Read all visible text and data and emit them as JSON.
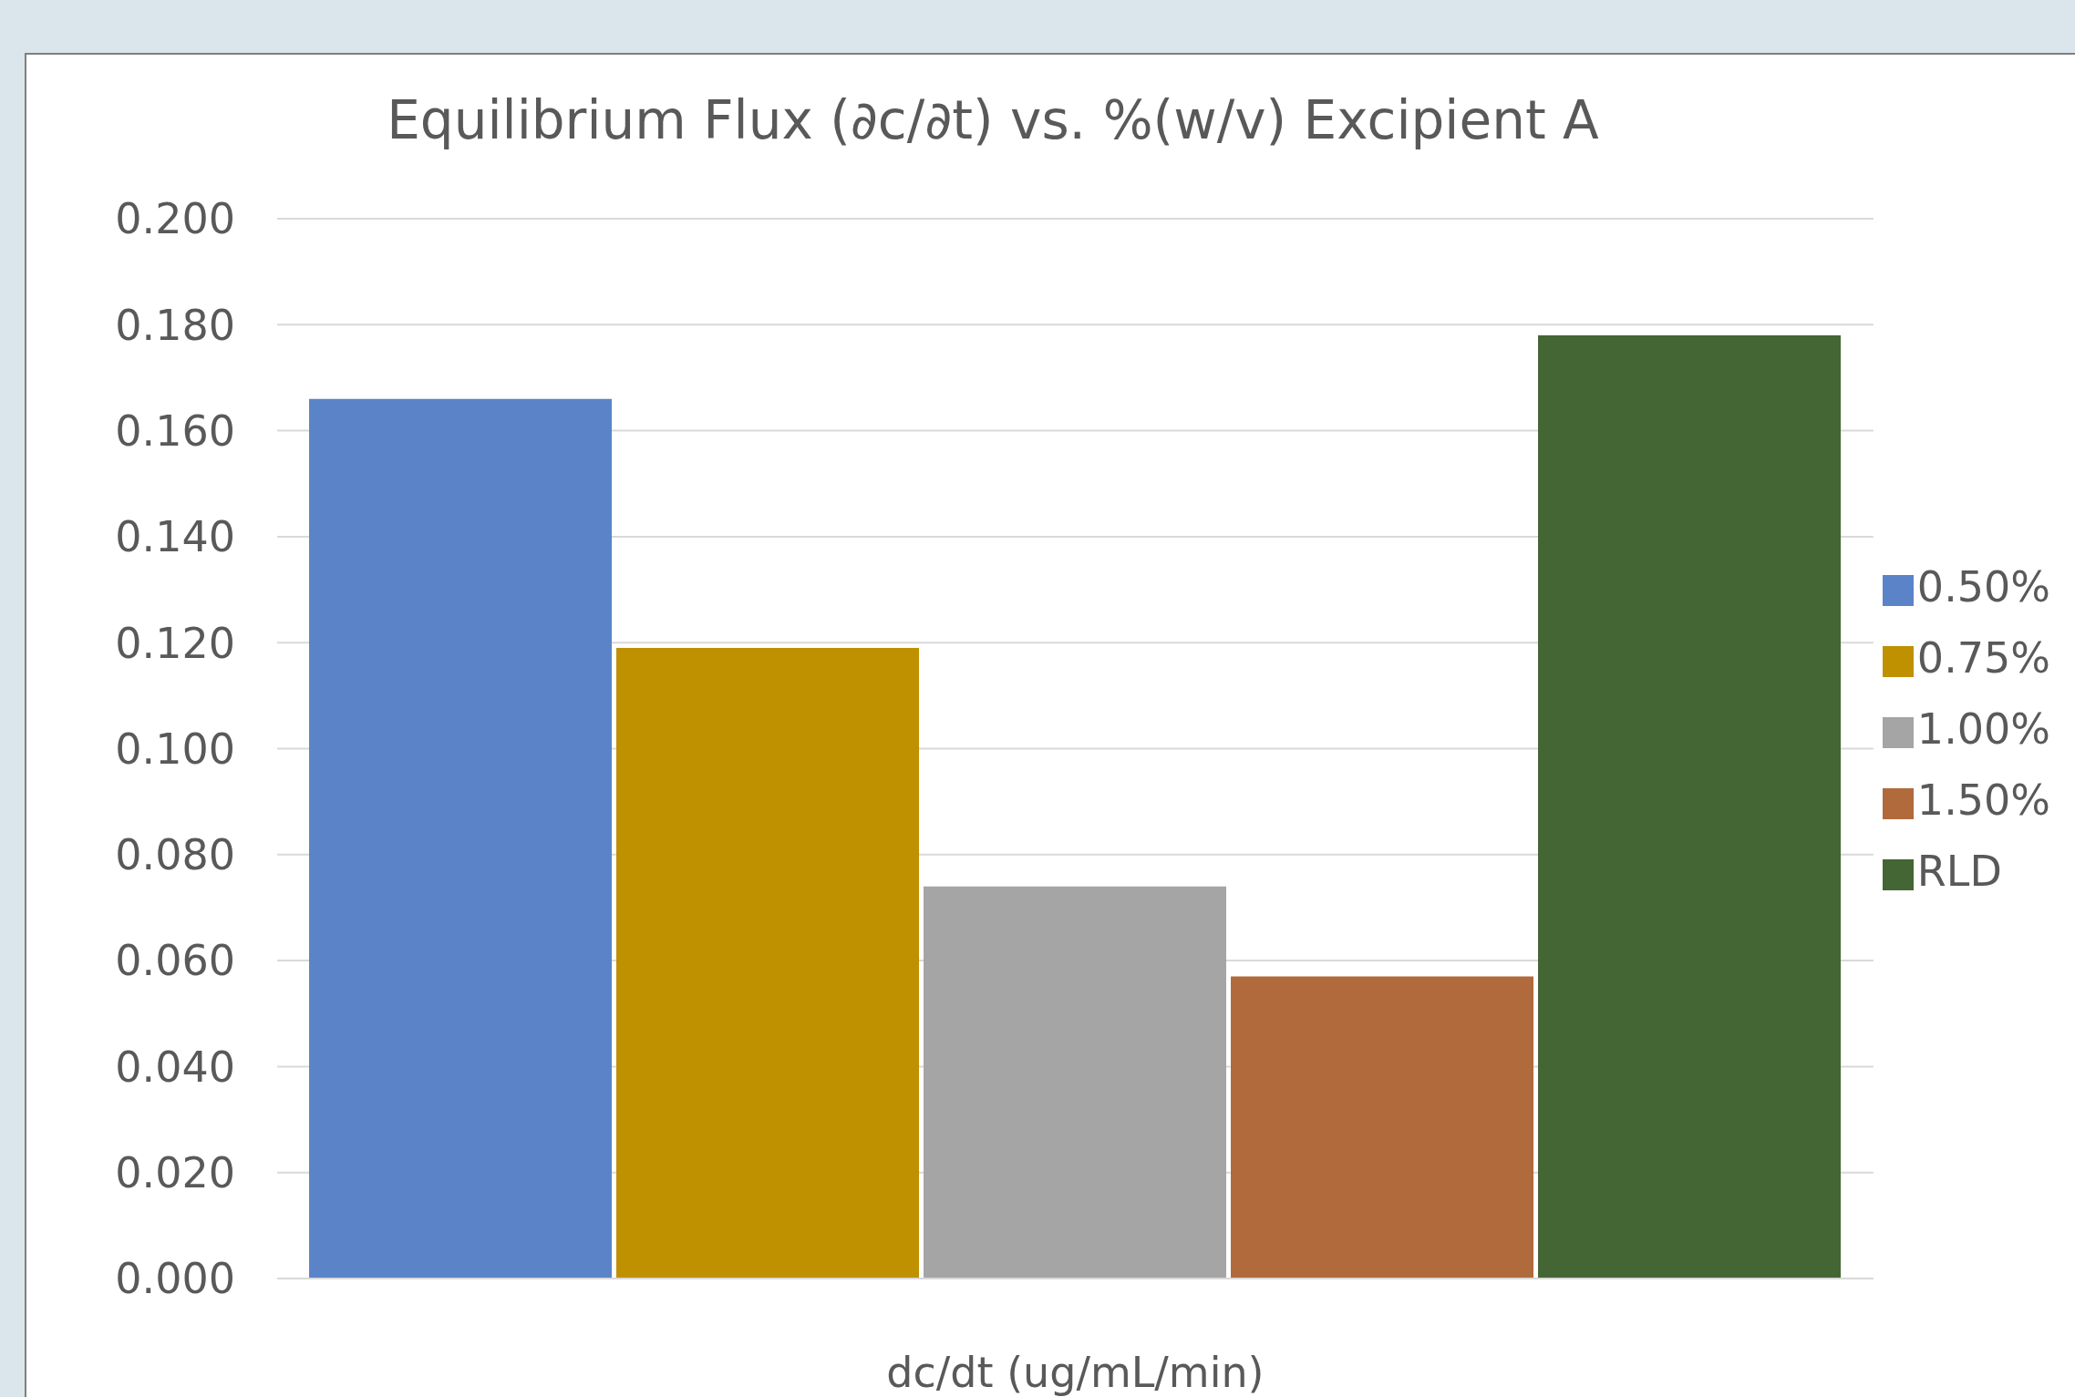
{
  "chart_data": {
    "type": "bar",
    "title": "Equilibrium Flux (∂c/∂t) vs. %(w/v) Excipient A",
    "xlabel": "dc/dt (ug/mL/min)",
    "categories": [
      null
    ],
    "series": [
      {
        "name": "0.50%",
        "color": "#5b84c8",
        "values": [
          0.166
        ]
      },
      {
        "name": "0.75%",
        "color": "#bf9000",
        "values": [
          0.119
        ]
      },
      {
        "name": "1.00%",
        "color": "#a5a5a5",
        "values": [
          0.074
        ]
      },
      {
        "name": "1.50%",
        "color": "#b06a3c",
        "values": [
          0.057
        ]
      },
      {
        "name": "RLD",
        "color": "#446534",
        "values": [
          0.178
        ]
      }
    ],
    "ylim": [
      0,
      0.2
    ],
    "yticks": [
      {
        "value": 0,
        "label": "0.000"
      },
      {
        "value": 0.02,
        "label": "0.020"
      },
      {
        "value": 0.04,
        "label": "0.040"
      },
      {
        "value": 0.06,
        "label": "0.060"
      },
      {
        "value": 0.08,
        "label": "0.080"
      },
      {
        "value": 0.1,
        "label": "0.100"
      },
      {
        "value": 0.12,
        "label": "0.120"
      },
      {
        "value": 0.14,
        "label": "0.140"
      },
      {
        "value": 0.16,
        "label": "0.160"
      },
      {
        "value": 0.18,
        "label": "0.180"
      },
      {
        "value": 0.2,
        "label": "0.200"
      }
    ],
    "grid": "y",
    "legend": "right"
  }
}
